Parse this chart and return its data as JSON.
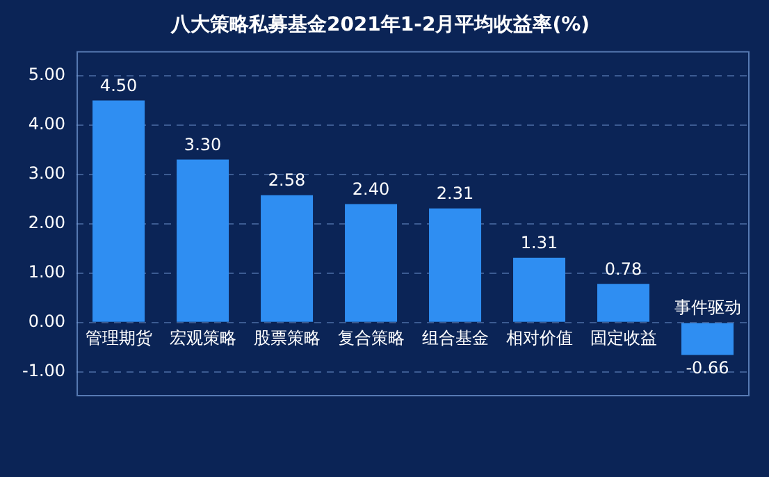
{
  "chart_data": {
    "type": "bar",
    "title": "八大策略私募基金2021年1-2月平均收益率(%)",
    "categories": [
      "管理期货",
      "宏观策略",
      "股票策略",
      "复合策略",
      "组合基金",
      "相对价值",
      "固定收益",
      "事件驱动"
    ],
    "values": [
      4.5,
      3.3,
      2.58,
      2.4,
      2.31,
      1.31,
      0.78,
      -0.66
    ],
    "color": "#2f8ef2",
    "ylim": [
      -1.5,
      5.5
    ],
    "yticks": [
      {
        "value": -1,
        "label": "-1.00"
      },
      {
        "value": 0,
        "label": "0.00"
      },
      {
        "value": 1,
        "label": "1.00"
      },
      {
        "value": 2,
        "label": "2.00"
      },
      {
        "value": 3,
        "label": "3.00"
      },
      {
        "value": 4,
        "label": "4.00"
      },
      {
        "value": 5,
        "label": "5.00"
      }
    ],
    "value_labels": [
      "4.50",
      "3.30",
      "2.58",
      "2.40",
      "2.31",
      "1.31",
      "0.78",
      "-0.66"
    ],
    "grid": "y",
    "legend": false
  }
}
